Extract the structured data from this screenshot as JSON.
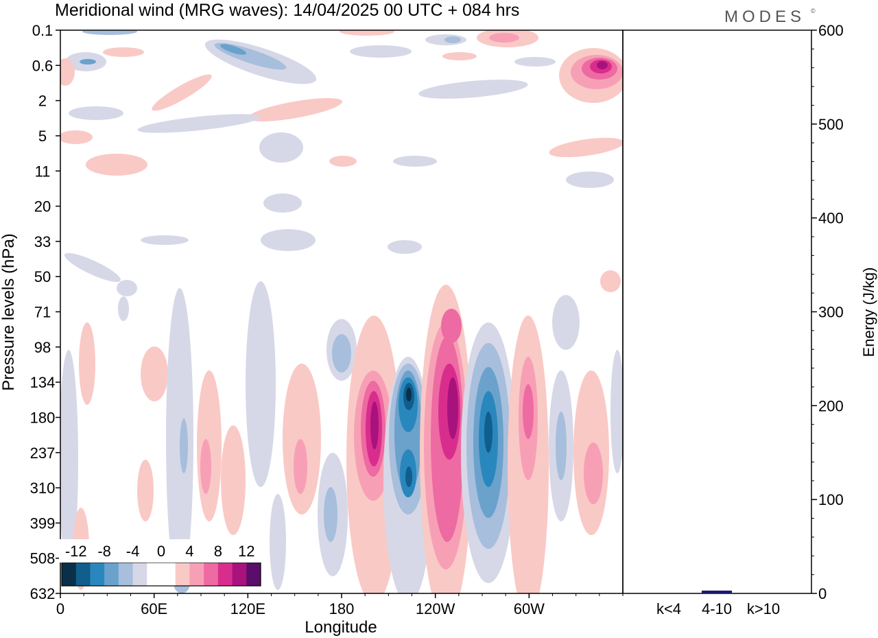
{
  "header": {
    "title": "Meridional wind (MRG waves):  14/04/2025  00 UTC  + 084 hrs",
    "brand": "MODES",
    "brand_mark": "©"
  },
  "chart_data": [
    {
      "type": "heatmap",
      "xlabel": "Longitude",
      "ylabel": "Pressure levels (hPa)",
      "x_ticks": [
        "0",
        "60E",
        "120E",
        "180",
        "120W",
        "60W"
      ],
      "y_ticks": [
        "0.1",
        "0.6",
        "2",
        "5",
        "11",
        "20",
        "33",
        "50",
        "71",
        "98",
        "134",
        "180",
        "237",
        "310",
        "399",
        "508",
        "632"
      ],
      "colorbar": {
        "labels": [
          "-12",
          "-8",
          "-4",
          "0",
          "4",
          "8",
          "12"
        ],
        "colors": [
          "#0a3049",
          "#0f5e8c",
          "#2a87bd",
          "#6aa2cc",
          "#a7bedc",
          "#d6d8e8",
          "#ffffff",
          "#ffffff",
          "#f9c9c6",
          "#f7a0b5",
          "#ee6aa2",
          "#d92d8d",
          "#a8127c",
          "#5a0d6a"
        ]
      },
      "features": [
        {
          "lon": 205,
          "level": 180,
          "value": 14,
          "sign": "positive"
        },
        {
          "lon": 225,
          "level": 134,
          "value": -14,
          "sign": "negative"
        },
        {
          "lon": 248,
          "level": 180,
          "value": 14,
          "sign": "positive"
        },
        {
          "lon": 268,
          "level": 237,
          "value": -12,
          "sign": "negative"
        },
        {
          "lon": 296,
          "level": 180,
          "value": 8,
          "sign": "positive"
        },
        {
          "lon": 356,
          "level": 0.6,
          "value": 12,
          "sign": "positive"
        }
      ]
    },
    {
      "type": "bar",
      "categories": [
        "k<4",
        "4-10",
        "k>10"
      ],
      "values": [
        0,
        3,
        0
      ],
      "ylabel": "Energy (J/kg)",
      "ylim": [
        0,
        600
      ],
      "y_ticks": [
        "0",
        "100",
        "200",
        "300",
        "400",
        "500",
        "600"
      ],
      "bar_color": "#1a1a6e"
    }
  ]
}
